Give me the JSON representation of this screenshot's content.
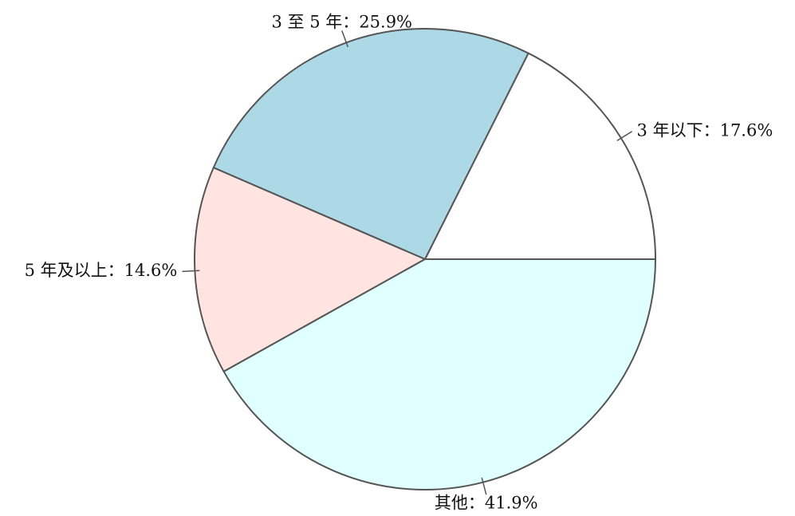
{
  "chart_data": {
    "type": "pie",
    "start_angle_deg": 0,
    "direction": "counterclockwise",
    "slices": [
      {
        "label": "3 年以下",
        "value": 17.6,
        "text": "3 年以下：17.6%",
        "color": "#ffffff"
      },
      {
        "label": "3 至 5 年",
        "value": 25.9,
        "text": "3 至 5 年：25.9%",
        "color": "#add8e6"
      },
      {
        "label": "5 年及以上",
        "value": 14.6,
        "text": "5 年及以上：14.6%",
        "color": "#ffe4e1"
      },
      {
        "label": "其他",
        "value": 41.9,
        "text": "其他：41.9%",
        "color": "#e0ffff"
      }
    ]
  }
}
